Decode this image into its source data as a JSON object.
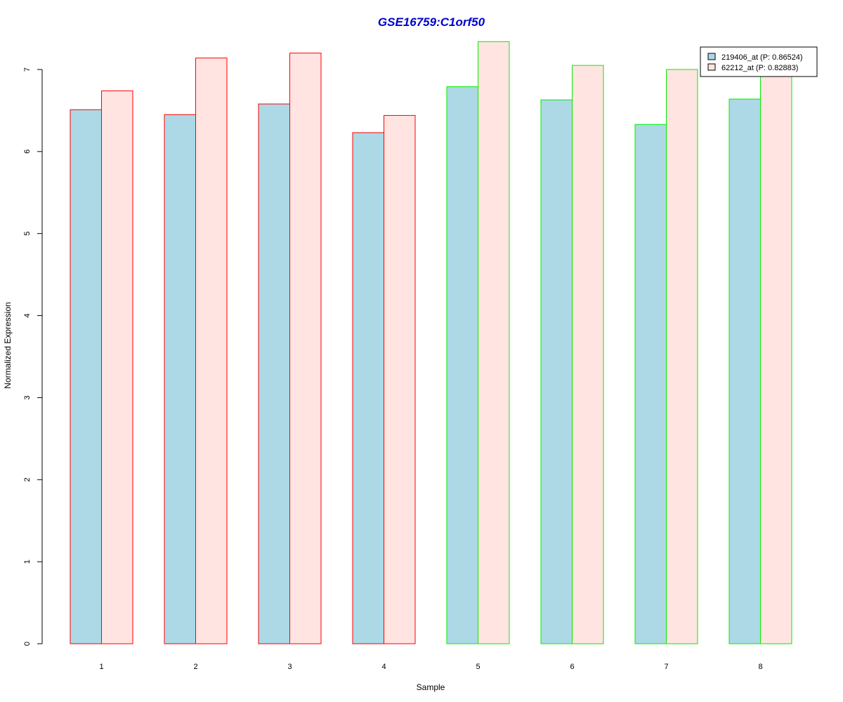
{
  "chart_data": {
    "type": "bar",
    "title": "GSE16759:C1orf50",
    "xlabel": "Sample",
    "ylabel": "Normalized Expression",
    "categories": [
      "1",
      "2",
      "3",
      "4",
      "5",
      "6",
      "7",
      "8"
    ],
    "yticks": [
      "0",
      "1",
      "2",
      "3",
      "4",
      "5",
      "6",
      "7"
    ],
    "ylim": [
      0,
      7.32
    ],
    "series": [
      {
        "name": "219406_at (P: 0.86524)",
        "fill": "#add8e6",
        "values": [
          6.51,
          6.45,
          6.58,
          6.23,
          6.79,
          6.63,
          6.33,
          6.64
        ]
      },
      {
        "name": "62212_at (P: 0.82883)",
        "fill": "#ffe4e1",
        "values": [
          6.74,
          7.14,
          7.2,
          6.44,
          7.34,
          7.05,
          7.0,
          6.98
        ]
      }
    ],
    "group_border_colors": [
      "#ff0000",
      "#ff0000",
      "#ff0000",
      "#ff0000",
      "#00ee00",
      "#00ee00",
      "#00ee00",
      "#00ee00"
    ],
    "title_color": "#0000cd",
    "legend_position": "top-right",
    "grid": false
  }
}
